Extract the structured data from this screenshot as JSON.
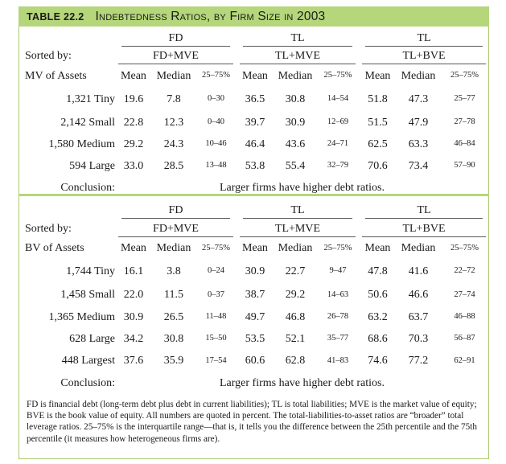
{
  "table": {
    "number": "TABLE 22.2",
    "title": "Indebtedness Ratios, by Firm Size in 2003"
  },
  "panels": [
    {
      "id": "mv",
      "groups": [
        "FD",
        "TL",
        "TL"
      ],
      "subgroups": [
        "FD+MVE",
        "TL+MVE",
        "TL+BVE"
      ],
      "sorted_by": "Sorted by:",
      "sort_label": "MV of Assets",
      "columns": [
        "Mean",
        "Median",
        "25–75%",
        "Mean",
        "Median",
        "25–75%",
        "Mean",
        "Median",
        "25–75%"
      ],
      "rows": [
        {
          "label": "1,321 Tiny",
          "values": [
            "19.6",
            "7.8",
            "0–30",
            "36.5",
            "30.8",
            "14–54",
            "51.8",
            "47.3",
            "25–77"
          ]
        },
        {
          "label": "2,142 Small",
          "values": [
            "22.8",
            "12.3",
            "0–40",
            "39.7",
            "30.9",
            "12–69",
            "51.5",
            "47.9",
            "27–78"
          ]
        },
        {
          "label": "1,580 Medium",
          "values": [
            "29.2",
            "24.3",
            "10–46",
            "46.4",
            "43.6",
            "24–71",
            "62.5",
            "63.3",
            "46–84"
          ]
        },
        {
          "label": "594 Large",
          "values": [
            "33.0",
            "28.5",
            "13–48",
            "53.8",
            "55.4",
            "32–79",
            "70.6",
            "73.4",
            "57–90"
          ]
        }
      ],
      "conclusion_label": "Conclusion:",
      "conclusion_text": "Larger firms have higher debt ratios."
    },
    {
      "id": "bv",
      "groups": [
        "FD",
        "TL",
        "TL"
      ],
      "subgroups": [
        "FD+MVE",
        "TL+MVE",
        "TL+BVE"
      ],
      "sorted_by": "Sorted by:",
      "sort_label": "BV of Assets",
      "columns": [
        "Mean",
        "Median",
        "25–75%",
        "Mean",
        "Median",
        "25–75%",
        "Mean",
        "Median",
        "25–75%"
      ],
      "rows": [
        {
          "label": "1,744 Tiny",
          "values": [
            "16.1",
            "3.8",
            "0–24",
            "30.9",
            "22.7",
            "9–47",
            "47.8",
            "41.6",
            "22–72"
          ]
        },
        {
          "label": "1,458 Small",
          "values": [
            "22.0",
            "11.5",
            "0–37",
            "38.7",
            "29.2",
            "14–63",
            "50.6",
            "46.6",
            "27–74"
          ]
        },
        {
          "label": "1,365 Medium",
          "values": [
            "30.9",
            "26.5",
            "11–48",
            "49.7",
            "46.8",
            "26–78",
            "63.2",
            "63.7",
            "46–88"
          ]
        },
        {
          "label": "628 Large",
          "values": [
            "34.2",
            "30.8",
            "15–50",
            "53.5",
            "52.1",
            "35–77",
            "68.6",
            "70.3",
            "56–87"
          ]
        },
        {
          "label": "448 Largest",
          "values": [
            "37.6",
            "35.9",
            "17–54",
            "60.6",
            "62.8",
            "41–83",
            "74.6",
            "77.2",
            "62–91"
          ]
        }
      ],
      "conclusion_label": "Conclusion:",
      "conclusion_text": "Larger firms have higher debt ratios."
    }
  ],
  "footnote": "FD is financial debt (long-term debt plus debt in current liabilities); TL is total liabilities; MVE is the market value of equity; BVE is the book value of equity. All numbers are quoted in percent. The total-liabilities-to-asset ratios are “broader” total leverage ratios. 25–75% is the interquartile range—that is, it tells you the difference between the 25th percentile and the 75th percentile (it measures how heterogeneous firms are).",
  "colors": {
    "accent": "#b5d67a",
    "text": "#1a1a1a"
  }
}
